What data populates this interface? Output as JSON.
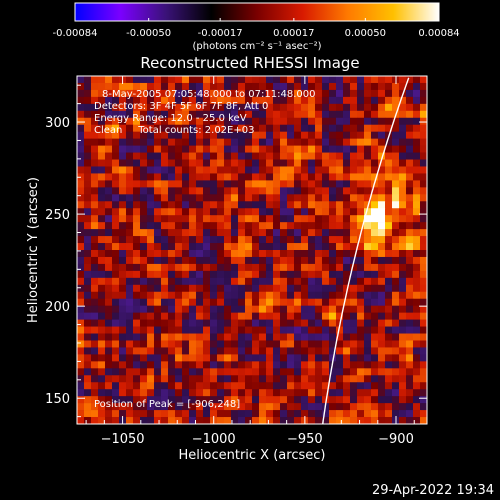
{
  "colorbar": {
    "ticks": [
      "-0.00084",
      "-0.00050",
      "-0.00017",
      "0.00017",
      "0.00050",
      "0.00084"
    ],
    "units": "(photons cm⁻² s⁻¹ asec⁻²)",
    "colors": [
      "#0000ff",
      "#7b00ff",
      "#3a1278",
      "#000000",
      "#7a0000",
      "#d81a00",
      "#ff7a00",
      "#ffc000",
      "#ffffff"
    ]
  },
  "chart_data": {
    "type": "heatmap",
    "title": "Reconstructed RHESSI Image",
    "xlabel": "Heliocentric X (arcsec)",
    "ylabel": "Heliocentric Y (arcsec)",
    "xlim": [
      -1075,
      -883
    ],
    "ylim": [
      136,
      325
    ],
    "xticks": [
      -1050,
      -1000,
      -950,
      -900
    ],
    "xtick_labels": [
      "−1050",
      "−1000",
      "−950",
      "−900"
    ],
    "yticks": [
      150,
      200,
      250,
      300
    ],
    "ytick_labels": [
      "150",
      "200",
      "250",
      "300"
    ],
    "colorbar_range": [
      -0.00084,
      0.00084
    ],
    "info_lines": [
      "8-May-2005 07:05:48.000 to 07:11:48.000",
      "Detectors: 3F 4F 5F 6F 7F 8F, Att 0",
      "Energy Range: 12.0 - 25.0 keV",
      "Clean     Total counts: 2.02E+03"
    ],
    "peak_label": "Position of Peak = [-906,248]",
    "peak": [
      -906,
      248
    ],
    "limb_color": "#ffffff"
  },
  "timestamp": "29-Apr-2022 19:34"
}
